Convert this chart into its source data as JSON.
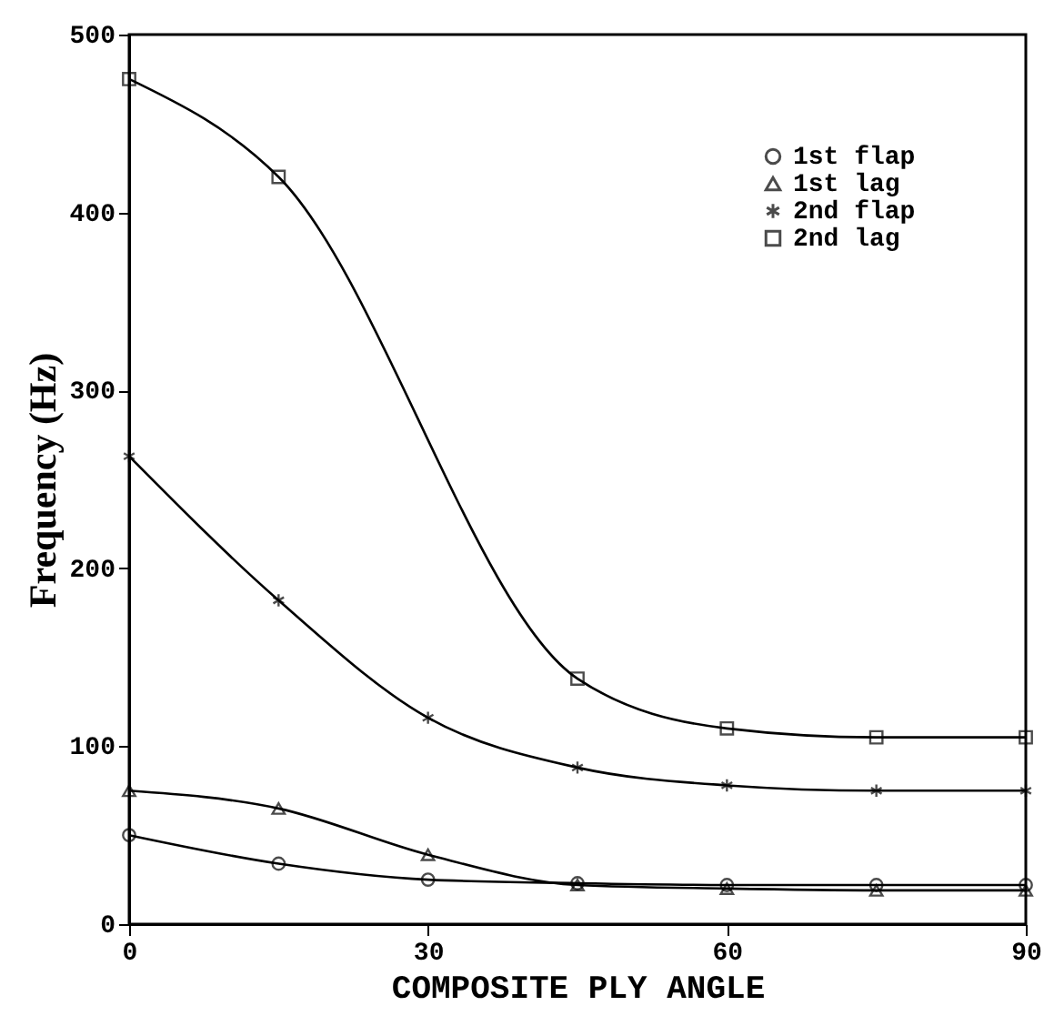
{
  "chart_data": {
    "type": "line",
    "xlabel": "COMPOSITE PLY ANGLE",
    "ylabel": "Frequency (Hz)",
    "x": [
      0,
      15,
      30,
      45,
      60,
      75,
      90
    ],
    "xlim": [
      0,
      90
    ],
    "xticks": [
      0,
      30,
      60,
      90
    ],
    "ylim": [
      0,
      500
    ],
    "yticks": [
      0,
      100,
      200,
      300,
      400,
      500
    ],
    "grid": false,
    "legend": "top right",
    "line_style": "solid",
    "series": [
      {
        "name": "1st flap",
        "color": "#000000",
        "marker": "circle",
        "values": [
          50,
          34,
          25,
          23,
          22,
          22,
          22
        ]
      },
      {
        "name": "1st lag",
        "color": "#000000",
        "marker": "triangle",
        "values": [
          75,
          65,
          39,
          22,
          20,
          19,
          19
        ]
      },
      {
        "name": "2nd flap",
        "color": "#000000",
        "marker": "cross",
        "values": [
          263,
          182,
          116,
          88,
          78,
          75,
          75
        ]
      },
      {
        "name": "2nd lag",
        "color": "#000000",
        "marker": "square",
        "x": [
          0,
          15,
          45,
          60,
          75,
          90
        ],
        "values": [
          475,
          420,
          138,
          110,
          105,
          105
        ]
      }
    ]
  }
}
